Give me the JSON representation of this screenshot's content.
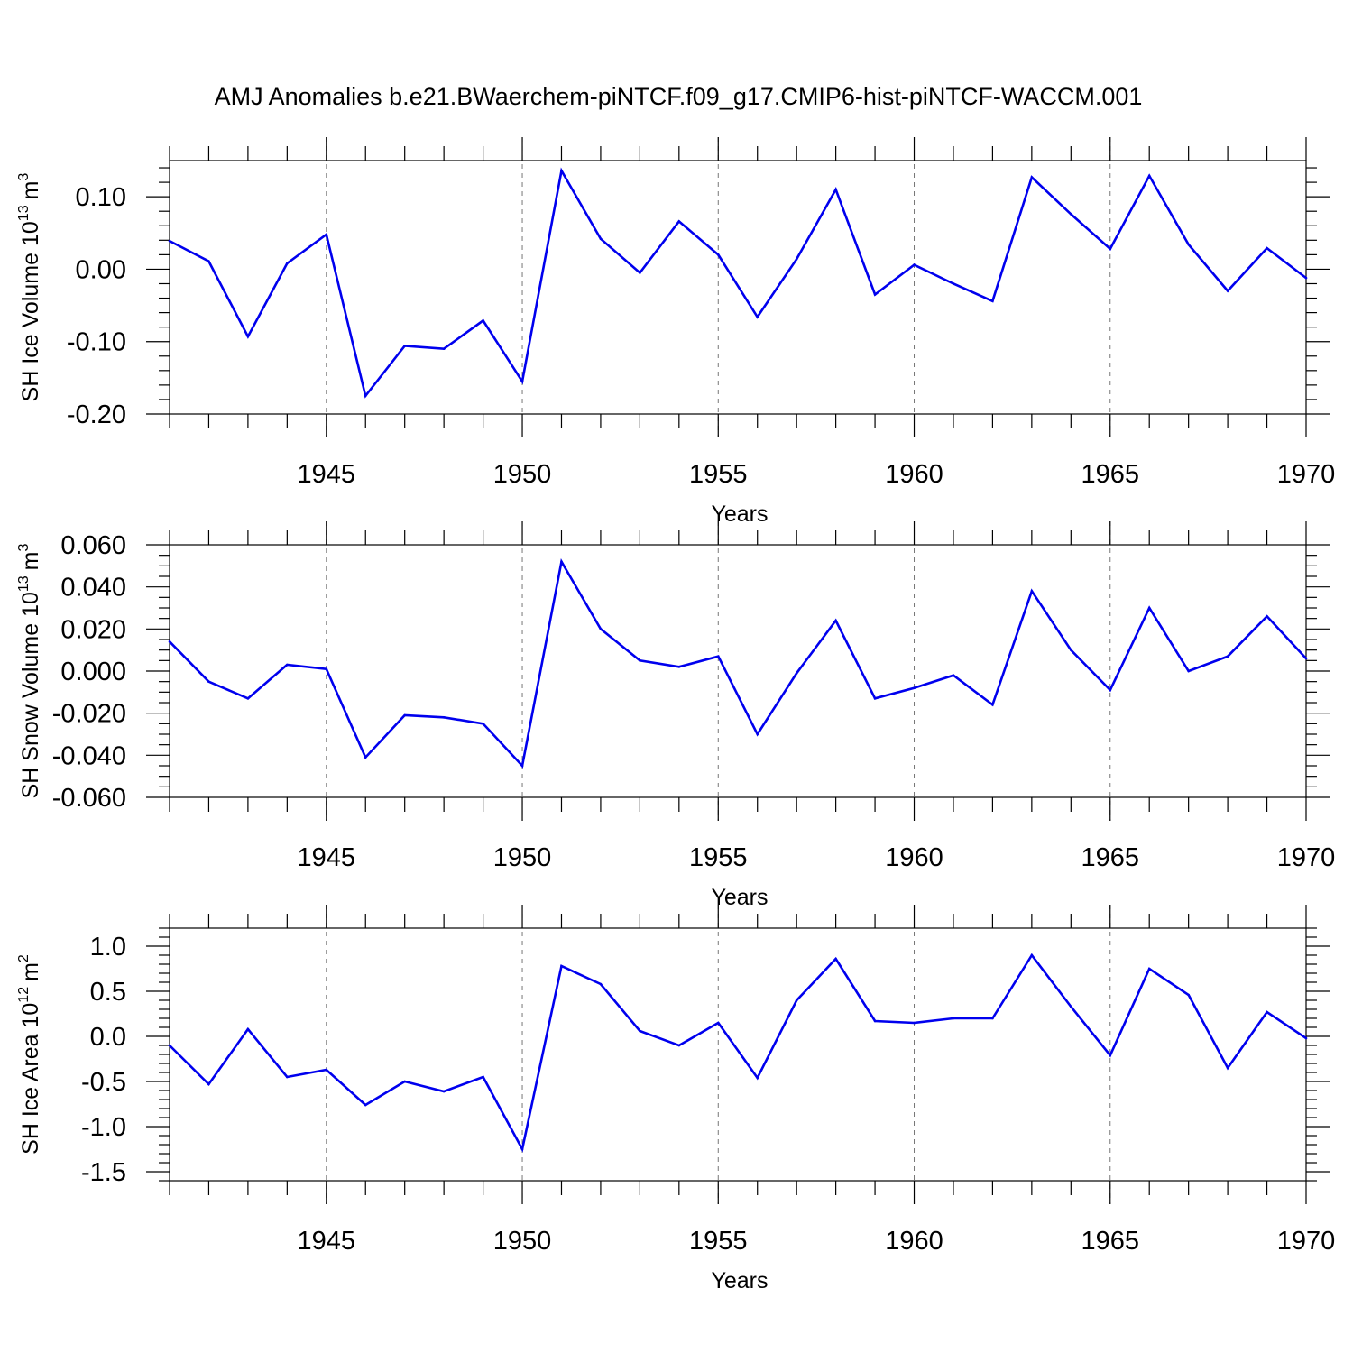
{
  "title": "AMJ Anomalies b.e21.BWaerchem-piNTCF.f09_g17.CMIP6-hist-piNTCF-WACCM.001",
  "colors": {
    "line": "#0000ee",
    "axis": "#000000",
    "grid": "#777777"
  },
  "chart_data": [
    {
      "type": "line",
      "xlabel": "Years",
      "ylabel_text": "SH Ice Volume 10",
      "ylabel_exp": "13",
      "ylabel_unit": "m",
      "ylabel_unit_exp": "3",
      "xlim": [
        1941,
        1970
      ],
      "ylim": [
        -0.2,
        0.15
      ],
      "xticks": [
        1945,
        1950,
        1955,
        1960,
        1965,
        1970
      ],
      "xtick_labels": [
        "1945",
        "1950",
        "1955",
        "1960",
        "1965",
        "1970"
      ],
      "yticks": [
        -0.2,
        -0.1,
        0.0,
        0.1
      ],
      "ytick_labels": [
        "-0.20",
        "-0.10",
        "0.00",
        "0.10"
      ],
      "y_minor_step": 0.02,
      "x": [
        1941,
        1942,
        1943,
        1944,
        1945,
        1946,
        1947,
        1948,
        1949,
        1950,
        1951,
        1952,
        1953,
        1954,
        1955,
        1956,
        1957,
        1958,
        1959,
        1960,
        1961,
        1962,
        1963,
        1964,
        1965,
        1966,
        1967,
        1968,
        1969,
        1970
      ],
      "values": [
        0.039,
        0.011,
        -0.093,
        0.008,
        0.048,
        -0.175,
        -0.106,
        -0.11,
        -0.071,
        -0.155,
        0.136,
        0.042,
        -0.005,
        0.066,
        0.02,
        -0.066,
        0.014,
        0.11,
        -0.035,
        0.006,
        -0.02,
        -0.044,
        0.127,
        0.076,
        0.028,
        0.129,
        0.034,
        -0.03,
        0.029,
        -0.012
      ]
    },
    {
      "type": "line",
      "xlabel": "Years",
      "ylabel_text": "SH Snow Volume 10",
      "ylabel_exp": "13",
      "ylabel_unit": "m",
      "ylabel_unit_exp": "3",
      "xlim": [
        1941,
        1970
      ],
      "ylim": [
        -0.06,
        0.06
      ],
      "xticks": [
        1945,
        1950,
        1955,
        1960,
        1965,
        1970
      ],
      "xtick_labels": [
        "1945",
        "1950",
        "1955",
        "1960",
        "1965",
        "1970"
      ],
      "yticks": [
        -0.06,
        -0.04,
        -0.02,
        0.0,
        0.02,
        0.04,
        0.06
      ],
      "ytick_labels": [
        "-0.060",
        "-0.040",
        "-0.020",
        "0.000",
        "0.020",
        "0.040",
        "0.060"
      ],
      "y_minor_step": 0.005,
      "x": [
        1941,
        1942,
        1943,
        1944,
        1945,
        1946,
        1947,
        1948,
        1949,
        1950,
        1951,
        1952,
        1953,
        1954,
        1955,
        1956,
        1957,
        1958,
        1959,
        1960,
        1961,
        1962,
        1963,
        1964,
        1965,
        1966,
        1967,
        1968,
        1969,
        1970
      ],
      "values": [
        0.014,
        -0.005,
        -0.013,
        0.003,
        0.001,
        -0.041,
        -0.021,
        -0.022,
        -0.025,
        -0.045,
        0.052,
        0.02,
        0.005,
        0.002,
        0.007,
        -0.03,
        -0.001,
        0.024,
        -0.013,
        -0.008,
        -0.002,
        -0.016,
        0.038,
        0.01,
        -0.009,
        0.03,
        -0.0,
        0.007,
        0.026,
        0.006
      ]
    },
    {
      "type": "line",
      "xlabel": "Years",
      "ylabel_text": "SH Ice Area 10",
      "ylabel_exp": "12",
      "ylabel_unit": "m",
      "ylabel_unit_exp": "2",
      "xlim": [
        1941,
        1970
      ],
      "ylim": [
        -1.6,
        1.2
      ],
      "xticks": [
        1945,
        1950,
        1955,
        1960,
        1965,
        1970
      ],
      "xtick_labels": [
        "1945",
        "1950",
        "1955",
        "1960",
        "1965",
        "1970"
      ],
      "yticks": [
        -1.5,
        -1.0,
        -0.5,
        0.0,
        0.5,
        1.0
      ],
      "ytick_labels": [
        "-1.5",
        "-1.0",
        "-0.5",
        "0.0",
        "0.5",
        "1.0"
      ],
      "y_minor_step": 0.1,
      "x": [
        1941,
        1942,
        1943,
        1944,
        1945,
        1946,
        1947,
        1948,
        1949,
        1950,
        1951,
        1952,
        1953,
        1954,
        1955,
        1956,
        1957,
        1958,
        1959,
        1960,
        1961,
        1962,
        1963,
        1964,
        1965,
        1966,
        1967,
        1968,
        1969,
        1970
      ],
      "values": [
        -0.1,
        -0.53,
        0.08,
        -0.45,
        -0.37,
        -0.76,
        -0.5,
        -0.61,
        -0.45,
        -1.25,
        0.78,
        0.58,
        0.06,
        -0.1,
        0.15,
        -0.46,
        0.4,
        0.86,
        0.17,
        0.15,
        0.2,
        0.2,
        0.9,
        0.33,
        -0.21,
        0.75,
        0.46,
        -0.35,
        0.27,
        -0.02
      ]
    }
  ]
}
